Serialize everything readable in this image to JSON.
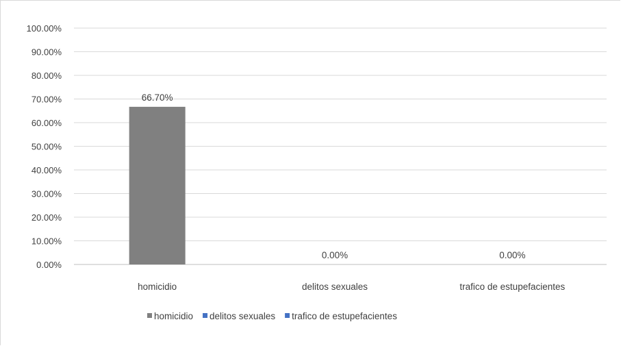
{
  "chart_data": {
    "type": "bar",
    "categories": [
      "homicidio",
      "delitos sexuales",
      "trafico de estupefacientes"
    ],
    "values": [
      66.7,
      0,
      0
    ],
    "data_labels": [
      "66.70%",
      "0.00%",
      "0.00%"
    ],
    "colors": [
      "#808080",
      "#4472c4",
      "#4472c4"
    ],
    "ylim": [
      0,
      100
    ],
    "yticks": [
      0,
      10,
      20,
      30,
      40,
      50,
      60,
      70,
      80,
      90,
      100
    ],
    "ytick_labels": [
      "0.00%",
      "10.00%",
      "20.00%",
      "30.00%",
      "40.00%",
      "50.00%",
      "60.00%",
      "70.00%",
      "80.00%",
      "90.00%",
      "100.00%"
    ],
    "grid": true,
    "legend": {
      "position": "bottom",
      "entries": [
        {
          "label": "homicidio",
          "color": "#808080"
        },
        {
          "label": "delitos sexuales",
          "color": "#4472c4"
        },
        {
          "label": "trafico de estupefacientes",
          "color": "#4472c4"
        }
      ]
    }
  }
}
